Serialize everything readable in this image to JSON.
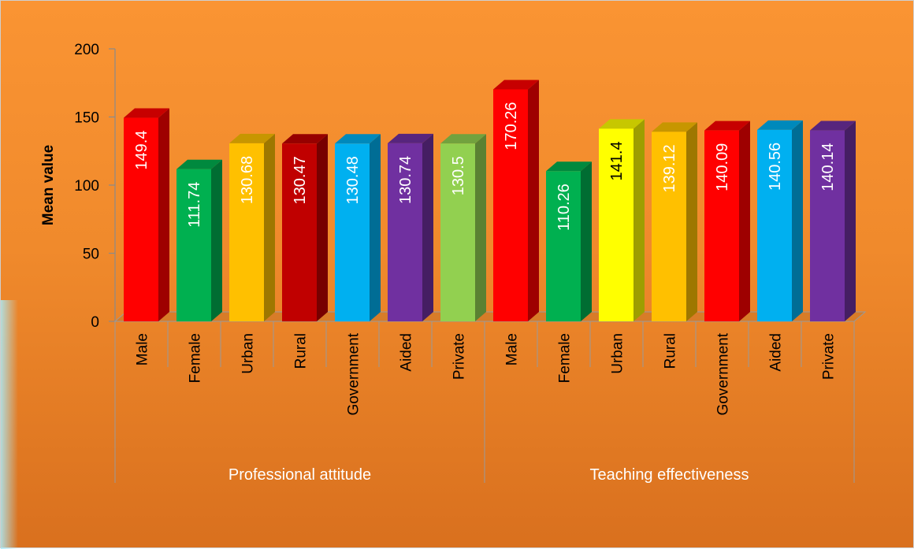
{
  "chart_data": {
    "type": "bar",
    "ylabel": "Mean value",
    "xlabel": "",
    "ylim": [
      0,
      200
    ],
    "y_ticks": [
      "0",
      "50",
      "100",
      "150",
      "200"
    ],
    "groups": [
      {
        "name": "Professional attitude",
        "categories": [
          "Male",
          "Female",
          "Urban",
          "Rural",
          "Government",
          "Aided",
          "Private"
        ],
        "values": [
          149.4,
          111.74,
          130.68,
          130.47,
          130.48,
          130.74,
          130.5
        ],
        "labels": [
          "149.4",
          "111.74",
          "130.68",
          "130.47",
          "130.48",
          "130.74",
          "130.5"
        ],
        "colors": [
          "#ff0000",
          "#00b050",
          "#ffc000",
          "#c00000",
          "#00b0f0",
          "#7030a0",
          "#92d050"
        ]
      },
      {
        "name": "Teaching effectiveness",
        "categories": [
          "Male",
          "Female",
          "Urban",
          "Rural",
          "Government",
          "Aided",
          "Private"
        ],
        "values": [
          170.26,
          110.26,
          141.4,
          139.12,
          140.09,
          140.56,
          140.14
        ],
        "labels": [
          "170.26",
          "110.26",
          "141.4",
          "139.12",
          "140.09",
          "140.56",
          "140.14"
        ],
        "colors": [
          "#ff0000",
          "#00b050",
          "#ffff00",
          "#ffc000",
          "#ff0000",
          "#00b0f0",
          "#7030a0"
        ]
      }
    ],
    "grid": false,
    "legend": "none",
    "style": "3d-column"
  }
}
